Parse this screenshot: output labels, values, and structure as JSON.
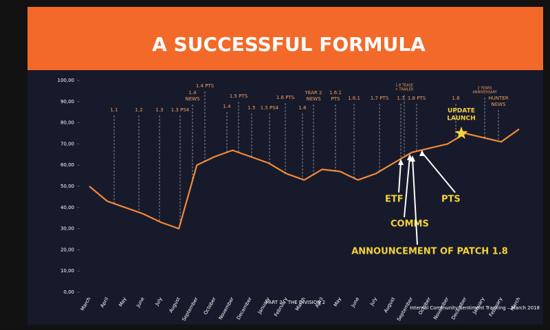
{
  "chart_data": {
    "type": "line",
    "title": "A SUCCESSFUL FORMULA",
    "categories": [
      "March",
      "April",
      "May",
      "June",
      "July",
      "August",
      "September",
      "October",
      "November",
      "December",
      "January",
      "February",
      "March",
      "April",
      "May",
      "June",
      "July",
      "August",
      "September",
      "October",
      "November",
      "December",
      "January",
      "February",
      "March"
    ],
    "series": [
      {
        "name": "Community Sentiment",
        "color": "#f28a3a",
        "values": [
          50,
          43,
          40,
          37,
          33,
          30,
          60,
          64,
          67,
          64,
          61,
          56,
          53,
          58,
          57,
          53,
          56,
          61,
          66,
          68,
          70,
          75,
          73,
          71,
          77
        ]
      }
    ],
    "ylim": [
      0,
      100
    ],
    "yticks": [
      {
        "value": 0,
        "label": "0,00"
      },
      {
        "value": 10,
        "label": "10,00"
      },
      {
        "value": 20,
        "label": "20,00"
      },
      {
        "value": 30,
        "label": "30,00"
      },
      {
        "value": 40,
        "label": "40,00"
      },
      {
        "value": 50,
        "label": "50,00"
      },
      {
        "value": 60,
        "label": "60,00"
      },
      {
        "value": 70,
        "label": "70,00"
      },
      {
        "value": 80,
        "label": "80,00"
      },
      {
        "value": 90,
        "label": "90,00"
      },
      {
        "value": 100,
        "label": "100,00"
      }
    ],
    "annotations": [
      [
        "1.1"
      ],
      [
        "1.2"
      ],
      [
        "1.3"
      ],
      [
        "1.3 PS4"
      ],
      [
        "1.4",
        "NEWS"
      ],
      [
        "1.4 PTS"
      ],
      [
        "1.4"
      ],
      [
        "1.5 PTS"
      ],
      [
        "1.5"
      ],
      [
        "1.5 PS4"
      ],
      [
        "1.6 PTS"
      ],
      [
        "1.6"
      ],
      [
        "YEAR 2",
        "NEWS"
      ],
      [
        "1.6.1",
        "PTS"
      ],
      [
        "1.6.1"
      ],
      [
        "1.7 PTS"
      ],
      [
        "1.7"
      ],
      [
        "1.8 TEASE",
        "+ TRAILER"
      ],
      [
        "1.8 PTS"
      ],
      [
        "1.8"
      ],
      [
        "2 YEARS",
        "ANNIVERSARY"
      ],
      [
        "HUNTER",
        "NEWS"
      ]
    ],
    "milestone": [
      "UPDATE",
      "LAUNCH"
    ],
    "callouts": [
      "ETF",
      "COMMS",
      "ANNOUNCEMENT OF PATCH 1.8",
      "PTS"
    ],
    "footer_left": "PART 2 – THE DIVISION 2",
    "footer_right": "Internal Community Sentiment Tracking – March 2018"
  }
}
